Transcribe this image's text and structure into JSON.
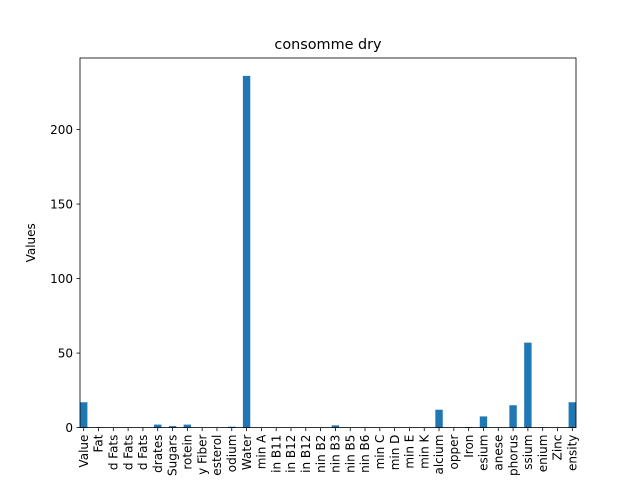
{
  "chart_data": {
    "type": "bar",
    "title": "consomme dry",
    "xlabel": "",
    "ylabel": "Values",
    "ylim": [
      0,
      248
    ],
    "yticks": [
      0,
      50,
      100,
      150,
      200
    ],
    "bar_color": "#1f77b4",
    "grid": false,
    "categories": [
      "Value",
      "Fat",
      "d Fats",
      "d Fats",
      "d Fats",
      "drates",
      "Sugars",
      "rotein",
      "y Fiber",
      "esterol",
      "odium",
      "Water",
      "min A",
      "in B11",
      "in B12",
      "in B12",
      "nin B2",
      "nin B3",
      "nin B5",
      "nin B6",
      "min C",
      "min D",
      "min E",
      "min K",
      "alcium",
      "opper",
      "Iron",
      "esium",
      "anese",
      "phorus",
      "ssium",
      "enium",
      "Zinc",
      "ensity"
    ],
    "values": [
      17,
      0.2,
      0.1,
      0.1,
      0.1,
      2,
      1,
      2,
      0,
      0,
      0.6,
      236,
      0,
      0,
      0,
      0,
      0.1,
      1.5,
      0.1,
      0.1,
      0,
      0,
      0,
      0,
      12,
      0.1,
      0.4,
      7.5,
      0.1,
      15,
      57,
      0.2,
      0.1,
      17
    ]
  }
}
